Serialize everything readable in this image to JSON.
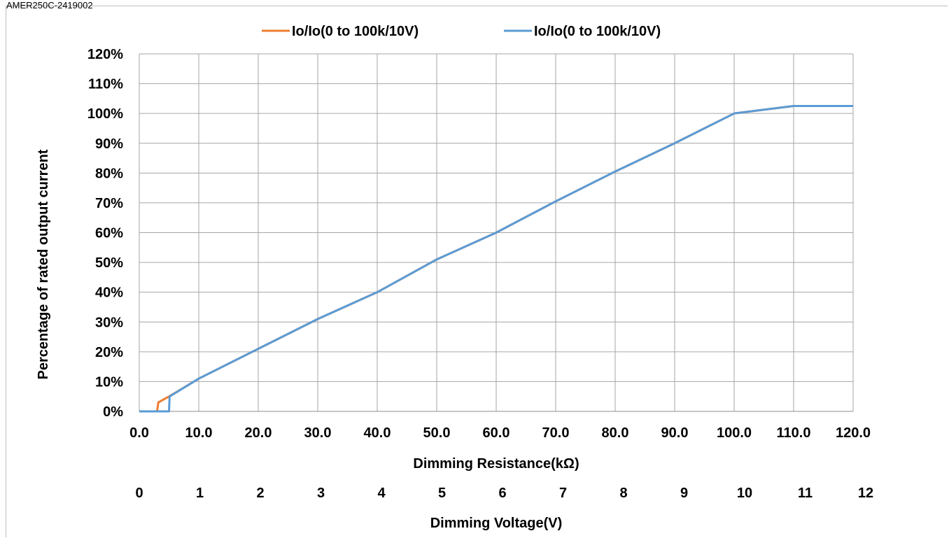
{
  "header": {
    "text": "AMER250C-2419002"
  },
  "chart_data": {
    "type": "line",
    "title": "",
    "xlabel": "Dimming Resistance(kΩ)",
    "x2label": "Dimming Voltage(V)",
    "ylabel": "Percentage of rated output current",
    "xlim": [
      0,
      120
    ],
    "ylim": [
      0,
      120
    ],
    "x_ticks": [
      "0.0",
      "10.0",
      "20.0",
      "30.0",
      "40.0",
      "50.0",
      "60.0",
      "70.0",
      "80.0",
      "90.0",
      "100.0",
      "110.0",
      "120.0"
    ],
    "x2_ticks": [
      "0",
      "1",
      "2",
      "3",
      "4",
      "5",
      "6",
      "7",
      "8",
      "9",
      "10",
      "11",
      "12"
    ],
    "y_ticks": [
      "0%",
      "10%",
      "20%",
      "30%",
      "40%",
      "50%",
      "60%",
      "70%",
      "80%",
      "90%",
      "100%",
      "110%",
      "120%"
    ],
    "grid": true,
    "legend_position": "top",
    "series": [
      {
        "name": "Io/Io(0 to 100k/10V)",
        "color": "#ED7D31",
        "points": [
          [
            0,
            0
          ],
          [
            3,
            0
          ],
          [
            3.2,
            3
          ],
          [
            5,
            5
          ],
          [
            10,
            11
          ],
          [
            20,
            21
          ],
          [
            30,
            31
          ],
          [
            40,
            40
          ],
          [
            50,
            51
          ],
          [
            60,
            60
          ],
          [
            70,
            70.5
          ],
          [
            80,
            80.5
          ],
          [
            90,
            90
          ],
          [
            100,
            100
          ],
          [
            110,
            102.5
          ],
          [
            120,
            102.5
          ]
        ]
      },
      {
        "name": "Io/Io(0 to 100k/10V)",
        "color": "#5B9BD5",
        "points": [
          [
            0,
            0
          ],
          [
            5,
            0
          ],
          [
            5.1,
            5
          ],
          [
            10,
            11
          ],
          [
            20,
            21
          ],
          [
            30,
            31
          ],
          [
            40,
            40
          ],
          [
            50,
            51
          ],
          [
            60,
            60
          ],
          [
            70,
            70.5
          ],
          [
            80,
            80.5
          ],
          [
            90,
            90
          ],
          [
            100,
            100
          ],
          [
            110,
            102.5
          ],
          [
            120,
            102.5
          ]
        ]
      }
    ]
  }
}
